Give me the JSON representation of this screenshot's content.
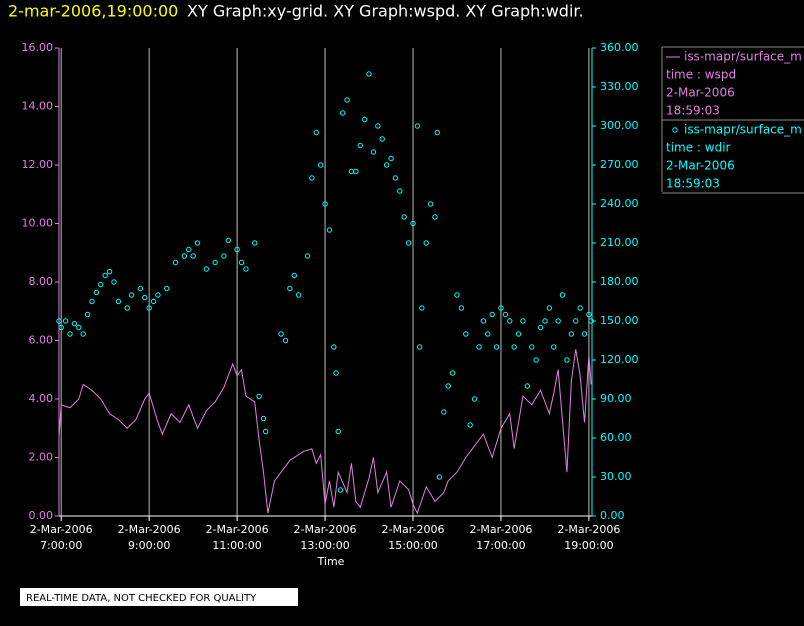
{
  "chart_data": {
    "type": "xy",
    "title": "2-mar-2006,19:00:00",
    "subtitle": "XY Graph:xy-grid.  XY Graph:wspd.  XY Graph:wdir.",
    "x_label": "Time",
    "footer": "REAL-TIME DATA, NOT CHECKED FOR QUALITY",
    "xlim": [
      6.95,
      19.07
    ],
    "xticks": [
      {
        "value": 7,
        "label": "2-Mar-2006\n7:00:00"
      },
      {
        "value": 9,
        "label": "2-Mar-2006\n9:00:00"
      },
      {
        "value": 11,
        "label": "2-Mar-2006\n11:00:00"
      },
      {
        "value": 13,
        "label": "2-Mar-2006\n13:00:00"
      },
      {
        "value": 15,
        "label": "2-Mar-2006\n15:00:00"
      },
      {
        "value": 17,
        "label": "2-Mar-2006\n17:00:00"
      },
      {
        "value": 19,
        "label": "2-Mar-2006\n19:00:00"
      }
    ],
    "ylim": [
      0,
      16
    ],
    "yticks": [
      {
        "value": 0,
        "label": "0.00"
      },
      {
        "value": 2,
        "label": "2.00"
      },
      {
        "value": 4,
        "label": "4.00"
      },
      {
        "value": 6,
        "label": "6.00"
      },
      {
        "value": 8,
        "label": "8.00"
      },
      {
        "value": 10,
        "label": "10.00"
      },
      {
        "value": 12,
        "label": "12.00"
      },
      {
        "value": 14,
        "label": "14.00"
      },
      {
        "value": 16,
        "label": "16.00"
      }
    ],
    "y2lim": [
      0,
      360
    ],
    "y2ticks": [
      {
        "value": 0,
        "label": "0.00"
      },
      {
        "value": 30,
        "label": "30.00"
      },
      {
        "value": 60,
        "label": "60.00"
      },
      {
        "value": 90,
        "label": "90.00"
      },
      {
        "value": 120,
        "label": "120.00"
      },
      {
        "value": 150,
        "label": "150.00"
      },
      {
        "value": 180,
        "label": "180.00"
      },
      {
        "value": 210,
        "label": "210.00"
      },
      {
        "value": 240,
        "label": "240.00"
      },
      {
        "value": 270,
        "label": "270.00"
      },
      {
        "value": 300,
        "label": "300.00"
      },
      {
        "value": 330,
        "label": "330.00"
      },
      {
        "value": 360,
        "label": "360.00"
      }
    ],
    "grid": true,
    "series": [
      {
        "name": "iss-mapr/surface_m",
        "legend_lines": [
          "time : wspd",
          "2-Mar-2006",
          "18:59:03"
        ],
        "color": "#e080e0",
        "style": "line",
        "axis": "y",
        "x": [
          6.95,
          7.0,
          7.2,
          7.4,
          7.5,
          7.7,
          7.9,
          8.1,
          8.3,
          8.5,
          8.7,
          8.9,
          9.0,
          9.2,
          9.3,
          9.5,
          9.7,
          9.9,
          10.1,
          10.3,
          10.5,
          10.7,
          10.9,
          11.0,
          11.1,
          11.2,
          11.4,
          11.5,
          11.6,
          11.7,
          11.85,
          12.2,
          12.5,
          12.7,
          12.8,
          12.9,
          13.0,
          13.1,
          13.2,
          13.3,
          13.5,
          13.6,
          13.7,
          13.8,
          14.0,
          14.1,
          14.2,
          14.4,
          14.5,
          14.7,
          14.9,
          15.0,
          15.1,
          15.3,
          15.5,
          15.7,
          15.8,
          16.0,
          16.2,
          16.4,
          16.6,
          16.8,
          17.0,
          17.2,
          17.3,
          17.5,
          17.7,
          17.9,
          18.1,
          18.2,
          18.3,
          18.5,
          18.6,
          18.7,
          18.8,
          18.9,
          19.0,
          19.05
        ],
        "values": [
          2.7,
          3.8,
          3.7,
          4.0,
          4.5,
          4.3,
          4.0,
          3.5,
          3.3,
          3.0,
          3.3,
          4.0,
          4.2,
          3.2,
          2.8,
          3.5,
          3.2,
          3.8,
          3.0,
          3.6,
          3.9,
          4.4,
          5.2,
          4.8,
          5.0,
          4.1,
          3.9,
          2.6,
          1.5,
          0.1,
          1.2,
          1.9,
          2.2,
          2.3,
          1.8,
          2.1,
          0.4,
          1.2,
          0.3,
          1.5,
          0.8,
          1.8,
          0.5,
          0.3,
          1.3,
          2.0,
          0.8,
          1.5,
          0.3,
          1.2,
          0.9,
          0.4,
          0.1,
          1.0,
          0.5,
          0.8,
          1.2,
          1.5,
          2.0,
          2.4,
          2.8,
          2.0,
          3.0,
          3.5,
          2.3,
          4.1,
          3.8,
          4.3,
          3.5,
          4.2,
          5.0,
          1.5,
          4.6,
          5.7,
          4.8,
          3.2,
          5.5,
          4.5
        ]
      },
      {
        "name": "iss-mapr/surface_m",
        "legend_lines": [
          "time : wdir",
          "2-Mar-2006",
          "18:59:03"
        ],
        "color": "#00ffff",
        "style": "scatter",
        "axis": "y2",
        "x": [
          6.95,
          7.0,
          7.1,
          7.2,
          7.3,
          7.4,
          7.5,
          7.6,
          7.7,
          7.8,
          7.9,
          8.0,
          8.1,
          8.2,
          8.3,
          8.5,
          8.6,
          8.8,
          8.9,
          9.0,
          9.1,
          9.2,
          9.4,
          9.6,
          9.8,
          9.9,
          10.0,
          10.1,
          10.3,
          10.5,
          10.7,
          10.8,
          11.0,
          11.1,
          11.2,
          11.4,
          11.5,
          11.6,
          11.65,
          12.0,
          12.1,
          12.2,
          12.3,
          12.4,
          12.6,
          12.7,
          12.8,
          12.9,
          13.0,
          13.1,
          13.2,
          13.25,
          13.3,
          13.35,
          13.4,
          13.5,
          13.6,
          13.7,
          13.8,
          13.9,
          14.0,
          14.1,
          14.2,
          14.3,
          14.4,
          14.5,
          14.6,
          14.7,
          14.8,
          14.9,
          15.0,
          15.1,
          15.15,
          15.2,
          15.3,
          15.4,
          15.5,
          15.55,
          15.6,
          15.7,
          15.8,
          15.9,
          16.0,
          16.1,
          16.2,
          16.3,
          16.4,
          16.5,
          16.6,
          16.7,
          16.8,
          16.9,
          17.0,
          17.1,
          17.2,
          17.3,
          17.4,
          17.5,
          17.6,
          17.7,
          17.8,
          17.9,
          18.0,
          18.1,
          18.2,
          18.3,
          18.4,
          18.5,
          18.6,
          18.7,
          18.8,
          18.9,
          19.0,
          19.05
        ],
        "values": [
          150,
          145,
          150,
          140,
          148,
          145,
          140,
          155,
          165,
          172,
          178,
          185,
          188,
          180,
          165,
          160,
          170,
          175,
          168,
          160,
          165,
          170,
          175,
          195,
          200,
          205,
          200,
          210,
          190,
          195,
          200,
          212,
          205,
          195,
          190,
          210,
          92,
          75,
          65,
          140,
          135,
          175,
          185,
          170,
          200,
          260,
          295,
          270,
          240,
          220,
          130,
          110,
          65,
          20,
          310,
          320,
          265,
          265,
          285,
          305,
          340,
          280,
          300,
          290,
          270,
          275,
          260,
          250,
          230,
          210,
          225,
          300,
          130,
          160,
          210,
          240,
          230,
          295,
          30,
          80,
          100,
          110,
          170,
          160,
          140,
          70,
          90,
          130,
          150,
          140,
          155,
          130,
          160,
          155,
          150,
          130,
          140,
          150,
          100,
          130,
          120,
          145,
          150,
          160,
          130,
          150,
          170,
          120,
          140,
          150,
          160,
          140,
          155,
          150
        ]
      }
    ]
  }
}
